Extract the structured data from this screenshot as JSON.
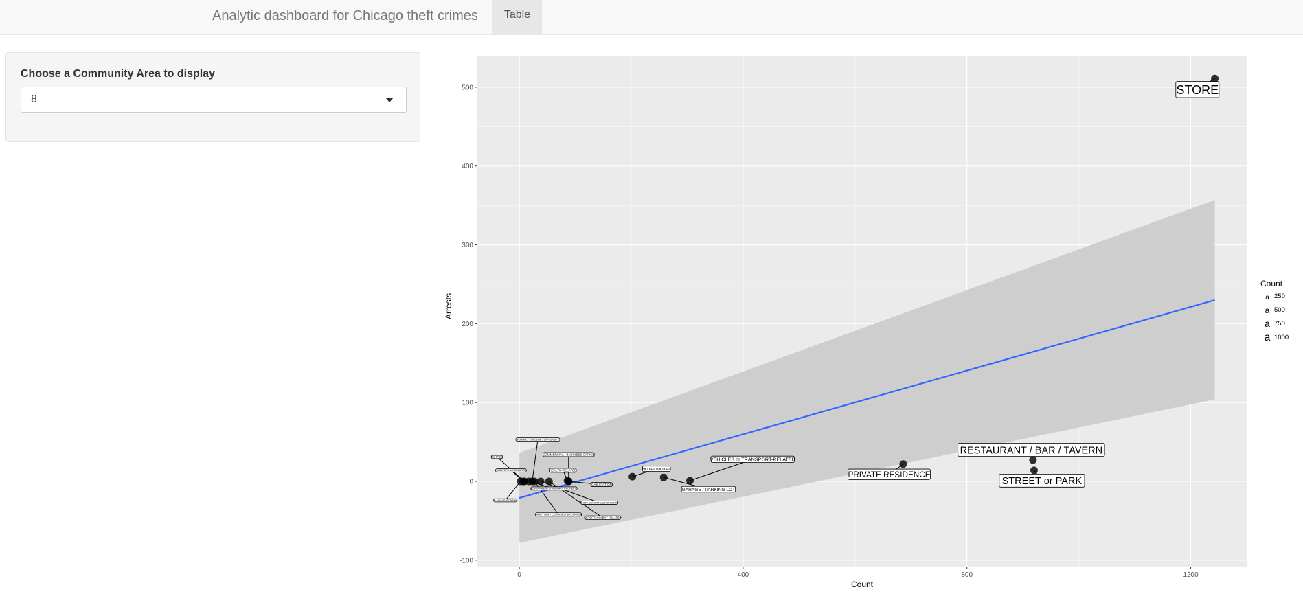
{
  "navbar": {
    "title": "Analytic dashboard for Chicago theft crimes",
    "tabs": [
      {
        "label": "Table",
        "active": true
      }
    ]
  },
  "sidebar": {
    "select_label": "Choose a Community Area to display",
    "select_value": "8"
  },
  "colors": {
    "panel_background": "#ebebeb",
    "confidence_band": "#cccccc",
    "fit_line": "#3366ff",
    "points": "#000000"
  },
  "chart_data": {
    "type": "scatter",
    "title": "",
    "xlabel": "Count",
    "ylabel": "Arrests",
    "xlim": [
      -75,
      1300
    ],
    "ylim": [
      -108,
      540
    ],
    "x_ticks": [
      0,
      400,
      800,
      1200
    ],
    "y_ticks": [
      -100,
      0,
      100,
      200,
      300,
      400,
      500
    ],
    "grid": true,
    "legend": {
      "title": "Count",
      "placement": "right",
      "entries": [
        {
          "label": "250",
          "glyph": "a"
        },
        {
          "label": "500",
          "glyph": "a"
        },
        {
          "label": "750",
          "glyph": "a"
        },
        {
          "label": "1000",
          "glyph": "a"
        }
      ]
    },
    "smooth": {
      "method": "linear",
      "x": [
        0,
        1243
      ],
      "y": [
        -21,
        230
      ],
      "band_lower": [
        -78,
        104
      ],
      "band_upper": [
        36,
        357
      ]
    },
    "points": [
      {
        "label": "STORE",
        "x": 1243,
        "y": 511,
        "label_x": 1212,
        "label_y": 497
      },
      {
        "label": "RESTAURANT / BAR / TAVERN",
        "x": 918,
        "y": 27,
        "label_x": 915,
        "label_y": 40
      },
      {
        "label": "STREET or PARK",
        "x": 920,
        "y": 14,
        "label_x": 934,
        "label_y": 1
      },
      {
        "label": "PRIVATE RESIDENCE",
        "x": 686,
        "y": 22,
        "label_x": 661,
        "label_y": 9
      },
      {
        "label": "VEHICLES or TRANSPORT-RELATED",
        "x": 305,
        "y": 1,
        "label_x": 417,
        "label_y": 28
      },
      {
        "label": "GARAGE / PARKING LOT",
        "x": 258,
        "y": 5,
        "label_x": 338,
        "label_y": -10
      },
      {
        "label": "HOTEL/MOTEL",
        "x": 202,
        "y": 6,
        "label_x": 245,
        "label_y": 16
      },
      {
        "label": "HEALTH-RELATED",
        "x": 86,
        "y": 1,
        "label_x": 78,
        "label_y": 14
      },
      {
        "label": "COMMERCIAL / BUSINESS OFFICE",
        "x": 88,
        "y": 0,
        "label_x": 88,
        "label_y": 34
      },
      {
        "label": "GAS STATION",
        "x": 88,
        "y": 0,
        "label_x": 147,
        "label_y": -4
      },
      {
        "label": "ENTERTAINMENT-RELATED",
        "x": 53,
        "y": 0,
        "label_x": 149,
        "label_y": -46
      },
      {
        "label": "LOT / CONSTRUCTION SITE",
        "x": 38,
        "y": 0,
        "label_x": 143,
        "label_y": -27
      },
      {
        "label": "BANK / ATM / CURRENCY EXCHANGE",
        "x": 27,
        "y": 0,
        "label_x": 70,
        "label_y": -42
      },
      {
        "label": "SCHOOL / COLLEGE / UNIVERSITY",
        "x": 23,
        "y": 0,
        "label_x": 33,
        "label_y": 53
      },
      {
        "label": "GOVERNMENT or MILITARY PROPERTY",
        "x": 17,
        "y": 0,
        "label_x": 62,
        "label_y": -9
      },
      {
        "label": "NO SPEC",
        "x": 9,
        "y": 0,
        "label_x": -40,
        "label_y": 31
      },
      {
        "label": "SHELTER / AID-RELATED",
        "x": 7,
        "y": 0,
        "label_x": -15,
        "label_y": 14
      },
      {
        "label": "PLACE OF WORSHIP",
        "x": 2,
        "y": 0,
        "label_x": -25,
        "label_y": -24
      }
    ]
  }
}
